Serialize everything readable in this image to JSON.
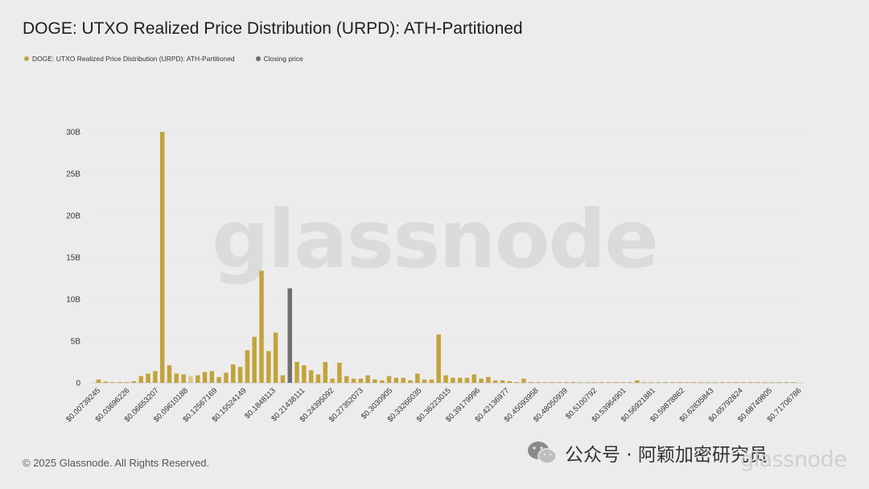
{
  "title": "DOGE: UTXO Realized Price Distribution (URPD): ATH-Partitioned",
  "legend": {
    "items": [
      {
        "label": "DOGE: UTXO Realized Price Distribution (URPD): ATH-Partitioned",
        "color": "#c2a33a"
      },
      {
        "label": "Closing price",
        "color": "#6e6e6e"
      }
    ]
  },
  "watermark": "glassnode",
  "footer": "© 2025 Glassnode. All Rights Reserved.",
  "wechat": {
    "label": "公众号 · 阿颖加密研究员",
    "icon": "wechat-icon"
  },
  "watermark_small": "glassnode",
  "chart_data": {
    "type": "bar",
    "title": "DOGE: UTXO Realized Price Distribution (URPD): ATH-Partitioned",
    "xlabel": "",
    "ylabel": "",
    "ylim": [
      0,
      30000000000
    ],
    "yticks": [
      {
        "value": 0,
        "label": "0"
      },
      {
        "value": 5000000000,
        "label": "5B"
      },
      {
        "value": 10000000000,
        "label": "10B"
      },
      {
        "value": 15000000000,
        "label": "15B"
      },
      {
        "value": 20000000000,
        "label": "20B"
      },
      {
        "value": 25000000000,
        "label": "25B"
      },
      {
        "value": 30000000000,
        "label": "30B"
      }
    ],
    "xtick_labels": [
      "$0.00739245",
      "$0.03696226",
      "$0.06653207",
      "$0.09610188",
      "$0.12567169",
      "$0.15524149",
      "$0.1848113",
      "$0.21438111",
      "$0.24395092",
      "$0.27352073",
      "$0.3030905",
      "$0.33266035",
      "$0.36223015",
      "$0.39179996",
      "$0.42136977",
      "$0.45093958",
      "$0.48050939",
      "$0.5100792",
      "$0.53964901",
      "$0.56921881",
      "$0.59878862",
      "$0.62835843",
      "$0.65792824",
      "$0.68749805",
      "$0.71706786"
    ],
    "closing_price_index": 27,
    "colors": {
      "bar": "#c2a33a",
      "bar_light": "#d9cb8e",
      "closing": "#6e6e6e"
    },
    "light_indices": [
      13
    ],
    "values": [
      0.4,
      0.15,
      0.05,
      0.1,
      0.05,
      0.2,
      0.8,
      1.1,
      1.4,
      30,
      2.1,
      1.1,
      1.0,
      0.8,
      0.9,
      1.3,
      1.4,
      0.7,
      1.2,
      2.2,
      1.9,
      3.9,
      5.5,
      13.4,
      3.8,
      6.0,
      0.9,
      11.3,
      2.5,
      2.1,
      1.5,
      1.0,
      2.5,
      0.5,
      2.4,
      0.8,
      0.5,
      0.5,
      0.9,
      0.4,
      0.3,
      0.8,
      0.6,
      0.6,
      0.3,
      1.1,
      0.4,
      0.4,
      5.8,
      0.9,
      0.6,
      0.6,
      0.6,
      1.0,
      0.5,
      0.7,
      0.3,
      0.3,
      0.2,
      0.1,
      0.5,
      0.1,
      0.05,
      0.05,
      0.02,
      0.02,
      0.05,
      0.1,
      0.05,
      0.02,
      0.02,
      0.02,
      0.02,
      0.02,
      0.02,
      0.02,
      0.3,
      0.02,
      0.02,
      0.02,
      0.02,
      0.02,
      0.05,
      0.02,
      0.02,
      0.02,
      0.02,
      0.02,
      0.02,
      0.02,
      0.02,
      0.02,
      0.02,
      0.02,
      0.02,
      0.02,
      0.02,
      0.05,
      0.02
    ],
    "value_unit": "B"
  }
}
